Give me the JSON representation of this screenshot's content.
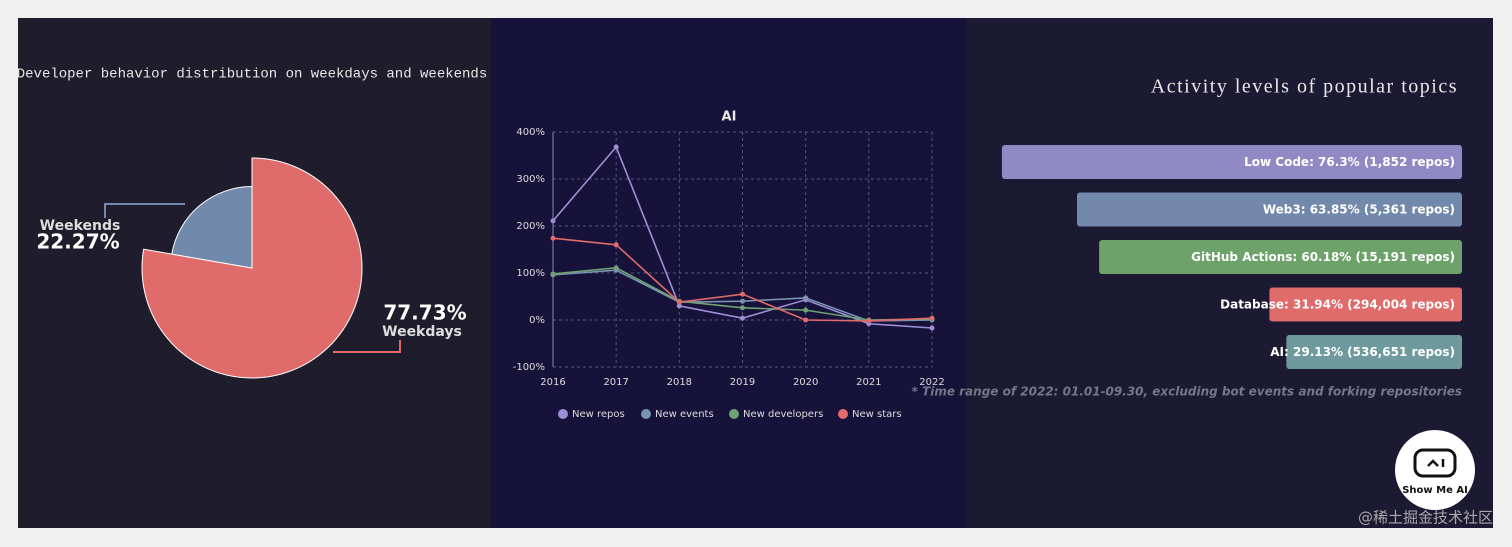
{
  "chart_data": [
    {
      "type": "pie",
      "title": "Developer behavior distribution on weekdays and weekends",
      "categories": [
        "Weekdays",
        "Weekends"
      ],
      "values": [
        77.73,
        22.27
      ],
      "value_labels": [
        "77.73%",
        "22.27%"
      ],
      "colors": [
        "#e06b6b",
        "#7189ab"
      ]
    },
    {
      "type": "line",
      "title": "AI",
      "categories": [
        "2016",
        "2017",
        "2018",
        "2019",
        "2020",
        "2021",
        "2022"
      ],
      "series": [
        {
          "name": "New repos",
          "color": "#9d8fd4",
          "values": [
            211,
            368,
            30,
            4,
            43,
            -8,
            -17
          ]
        },
        {
          "name": "New events",
          "color": "#7b93b3",
          "values": [
            96,
            106,
            38,
            40,
            47,
            -2,
            0
          ]
        },
        {
          "name": "New developers",
          "color": "#6ea371",
          "values": [
            98,
            111,
            40,
            26,
            21,
            0,
            2
          ]
        },
        {
          "name": "New stars",
          "color": "#e06b6b",
          "values": [
            174,
            160,
            38,
            55,
            0,
            -2,
            4
          ]
        }
      ],
      "ylim": [
        -100,
        400
      ],
      "yticks": [
        {
          "value": -100,
          "label": "-100%"
        },
        {
          "value": 0,
          "label": "0%"
        },
        {
          "value": 100,
          "label": "100%"
        },
        {
          "value": 200,
          "label": "200%"
        },
        {
          "value": 300,
          "label": "300%"
        },
        {
          "value": 400,
          "label": "400%"
        }
      ],
      "grid": true
    },
    {
      "type": "hbar",
      "title": "Activity levels of popular topics",
      "categories": [
        "Low Code",
        "Web3",
        "GitHub Actions",
        "Database",
        "AI"
      ],
      "values": [
        76.3,
        63.85,
        60.18,
        31.94,
        29.13
      ],
      "value_labels": [
        ": 76.3% (1,852 repos)",
        ": 63.85% (5,361 repos)",
        ": 60.18% (15,191 repos)",
        ": 31.94% (294,004 repos)",
        ": 29.13% (536,651 repos)"
      ],
      "colors": [
        "#9189c3",
        "#7389ab",
        "#6da36b",
        "#e06b6b",
        "#6f9a9d"
      ],
      "xlim": [
        0,
        100
      ],
      "note": "* Time range of 2022: 01.01-09.30, excluding bot events and forking repositories"
    }
  ],
  "logo": "Show Me AI",
  "watermark": "@稀土掘金技术社区"
}
